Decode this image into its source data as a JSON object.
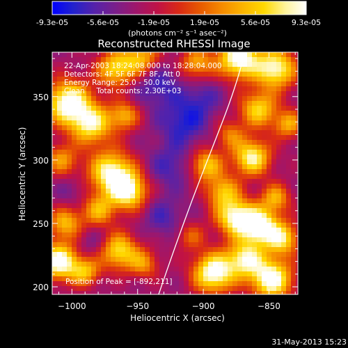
{
  "colorbar": {
    "tick_labels": [
      "-9.3e-05",
      "-5.6e-05",
      "-1.9e-05",
      "1.9e-05",
      "5.6e-05",
      "9.3e-05"
    ],
    "units_label": "(photons cm⁻² s⁻¹ asec⁻²)",
    "colormap": [
      "#0000ff",
      "#2222cc",
      "#5522aa",
      "#7a1f8a",
      "#a0166a",
      "#c01245",
      "#d92a14",
      "#e85a00",
      "#f58a00",
      "#fbb400",
      "#ffd800",
      "#fff39a",
      "#ffffff"
    ]
  },
  "chart_data": {
    "type": "heatmap",
    "title": "Reconstructed RHESSI Image",
    "xlabel": "Heliocentric X (arcsec)",
    "ylabel": "Heliocentric Y (arcsec)",
    "xlim": [
      -1015,
      -828
    ],
    "ylim": [
      194,
      385
    ],
    "xticks": [
      -1000,
      -950,
      -900,
      -850
    ],
    "yticks": [
      200,
      250,
      300,
      350
    ],
    "value_range": [
      -9.3e-05,
      9.3e-05
    ],
    "annotations": [
      "22-Apr-2003 18:24:08.000 to 18:28:04.000",
      "Detectors: 4F 5F 6F 7F 8F, Att 0",
      "Energy Range: 25.0 - 50.0 keV",
      "Clean     Total counts: 2.30E+03"
    ],
    "peak_label": "Position of Peak = [-892,211]",
    "peak": [
      -892,
      211
    ],
    "limb_points": [
      [
        -934,
        194
      ],
      [
        -922,
        230
      ],
      [
        -908,
        270
      ],
      [
        -893,
        310
      ],
      [
        -878,
        350
      ],
      [
        -868,
        385
      ]
    ],
    "blobs": [
      {
        "x": -1003,
        "y": 345,
        "a": 1.0,
        "s": 12
      },
      {
        "x": -985,
        "y": 328,
        "a": 0.8,
        "s": 11
      },
      {
        "x": -967,
        "y": 372,
        "a": 0.7,
        "s": 10
      },
      {
        "x": -960,
        "y": 335,
        "a": 0.55,
        "s": 8
      },
      {
        "x": -947,
        "y": 380,
        "a": 0.6,
        "s": 10
      },
      {
        "x": -1008,
        "y": 300,
        "a": 0.5,
        "s": 9
      },
      {
        "x": -970,
        "y": 290,
        "a": 0.9,
        "s": 12
      },
      {
        "x": -957,
        "y": 275,
        "a": 0.85,
        "s": 10
      },
      {
        "x": -980,
        "y": 260,
        "a": 0.55,
        "s": 9
      },
      {
        "x": -1005,
        "y": 250,
        "a": 0.6,
        "s": 9
      },
      {
        "x": -1010,
        "y": 220,
        "a": 1.0,
        "s": 10
      },
      {
        "x": -990,
        "y": 212,
        "a": 0.6,
        "s": 8
      },
      {
        "x": -964,
        "y": 228,
        "a": 0.75,
        "s": 10
      },
      {
        "x": -945,
        "y": 218,
        "a": 0.45,
        "s": 8
      },
      {
        "x": -905,
        "y": 376,
        "a": 0.55,
        "s": 9
      },
      {
        "x": -873,
        "y": 380,
        "a": 1.0,
        "s": 11
      },
      {
        "x": -845,
        "y": 372,
        "a": 0.9,
        "s": 11
      },
      {
        "x": -858,
        "y": 340,
        "a": 0.7,
        "s": 10
      },
      {
        "x": -835,
        "y": 328,
        "a": 0.55,
        "s": 8
      },
      {
        "x": -880,
        "y": 320,
        "a": 0.4,
        "s": 8
      },
      {
        "x": -863,
        "y": 302,
        "a": 0.85,
        "s": 10
      },
      {
        "x": -898,
        "y": 296,
        "a": 0.65,
        "s": 9
      },
      {
        "x": -885,
        "y": 275,
        "a": 0.6,
        "s": 9
      },
      {
        "x": -845,
        "y": 270,
        "a": 0.55,
        "s": 8
      },
      {
        "x": -876,
        "y": 255,
        "a": 0.85,
        "s": 10
      },
      {
        "x": -858,
        "y": 248,
        "a": 1.0,
        "s": 10
      },
      {
        "x": -840,
        "y": 238,
        "a": 0.75,
        "s": 9
      },
      {
        "x": -892,
        "y": 211,
        "a": 1.0,
        "s": 11
      },
      {
        "x": -868,
        "y": 222,
        "a": 0.8,
        "s": 10
      },
      {
        "x": -848,
        "y": 206,
        "a": 1.0,
        "s": 11
      },
      {
        "x": -910,
        "y": 240,
        "a": 0.35,
        "s": 8
      }
    ],
    "dips": [
      {
        "x": -935,
        "y": 360,
        "a": 0.7,
        "s": 12
      },
      {
        "x": -915,
        "y": 330,
        "a": 0.8,
        "s": 13
      },
      {
        "x": -925,
        "y": 295,
        "a": 0.6,
        "s": 12
      },
      {
        "x": -930,
        "y": 255,
        "a": 0.55,
        "s": 11
      },
      {
        "x": -900,
        "y": 350,
        "a": 0.5,
        "s": 10
      },
      {
        "x": -985,
        "y": 235,
        "a": 0.35,
        "s": 9
      },
      {
        "x": -1000,
        "y": 275,
        "a": 0.3,
        "s": 9
      }
    ]
  },
  "footer": {
    "date": "31-May-2013 15:23"
  }
}
